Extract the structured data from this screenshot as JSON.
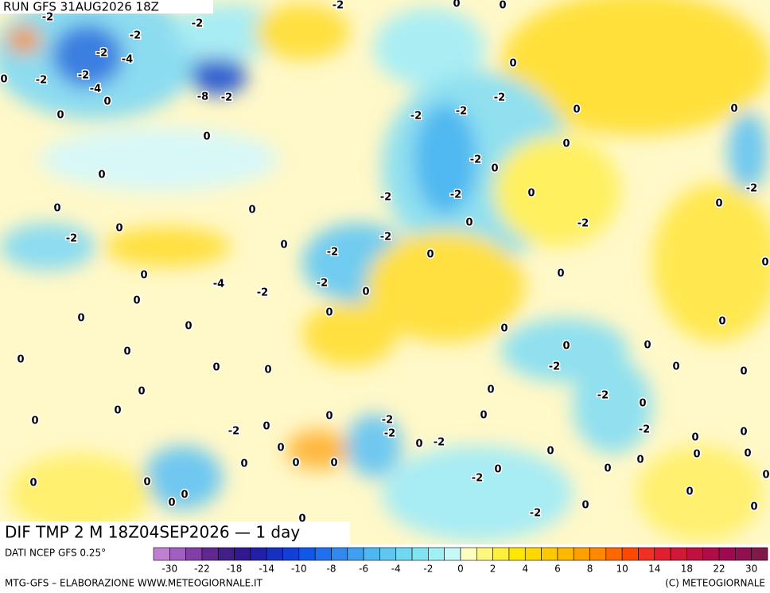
{
  "header": {
    "run": "RUN GFS 31AUG2026 18Z"
  },
  "map": {
    "title": "DIF TMP 2 M 18Z04SEP2026 — 1 day",
    "contour_labels": [
      "-2",
      "-2",
      "-2",
      "-4",
      "-2",
      "-2",
      "0",
      "-4",
      "0",
      "0",
      "-2",
      "-8",
      "-2",
      "-2",
      "0",
      "0",
      "0",
      "-2",
      "-2",
      "-2",
      "0",
      "0",
      "0",
      "-2",
      "0",
      "0",
      "0",
      "0",
      "0",
      "-2",
      "-2",
      "0",
      "-2",
      "-2",
      "0",
      "0",
      "0",
      "-2",
      "-2",
      "0",
      "-2",
      "0",
      "0",
      "0",
      "-4",
      "-2",
      "-2",
      "0",
      "0",
      "0",
      "0",
      "0",
      "0",
      "0",
      "0",
      "0",
      "0",
      "0",
      "0",
      "0",
      "0",
      "-2",
      "0",
      "0",
      "0",
      "0",
      "-2",
      "0",
      "0",
      "0",
      "0",
      "0",
      "-2",
      "0",
      "-2",
      "-2",
      "0",
      "0",
      "-2",
      "0",
      "-2",
      "0",
      "0",
      "0",
      "0",
      "0",
      "0",
      "0",
      "0",
      "0",
      "0",
      "-2",
      "0",
      "0",
      "0",
      "0",
      "0",
      "0",
      "-2",
      "0",
      "0",
      "0"
    ]
  },
  "legend": {
    "caption": "DATI NCEP GFS 0.25°",
    "colors": [
      "#c080d0",
      "#a060c0",
      "#8040a8",
      "#602890",
      "#402088",
      "#301890",
      "#2020a8",
      "#1830c0",
      "#1040d8",
      "#1058e8",
      "#2070f0",
      "#3088f0",
      "#40a0f0",
      "#50b8f0",
      "#60c8f0",
      "#70d8f0",
      "#80e4f0",
      "#a0f0f4",
      "#c8f8f8",
      "#ffffc0",
      "#fff880",
      "#fff040",
      "#ffe800",
      "#ffd800",
      "#ffc800",
      "#ffb800",
      "#ffa000",
      "#ff8800",
      "#ff6800",
      "#ff4800",
      "#f03020",
      "#e02030",
      "#d01838",
      "#c01040",
      "#b00c48",
      "#a00850",
      "#901050",
      "#801848"
    ],
    "labels": [
      "-30",
      "-22",
      "-18",
      "-14",
      "-10",
      "-8",
      "-6",
      "-4",
      "-2",
      "0",
      "2",
      "4",
      "6",
      "8",
      "10",
      "14",
      "18",
      "22",
      "30"
    ]
  },
  "footer": {
    "left": "MTG-GFS – ELABORAZIONE WWW.METEOGIORNALE.IT",
    "right": "(C) METEOGIORNALE"
  }
}
